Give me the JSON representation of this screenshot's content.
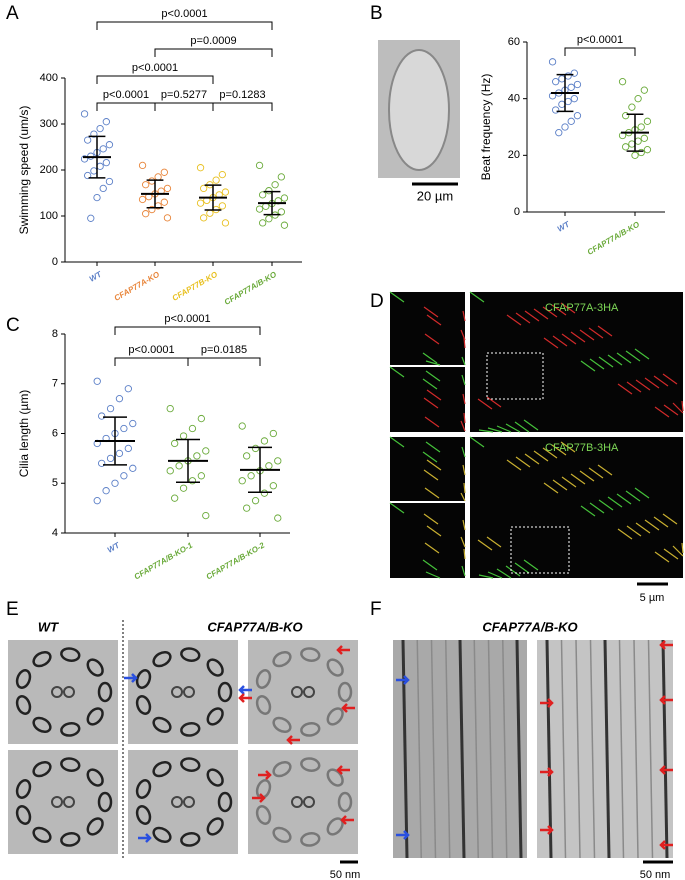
{
  "chart_data": [
    {
      "type": "dot",
      "ylabel": "Swimming speed (um/s)",
      "categories": [
        "WT",
        "CFAP77A-KO",
        "CFAP77B-KO",
        "CFAP77A/B-KO"
      ],
      "colors": [
        "#5b7fc7",
        "#e8853a",
        "#e8c020",
        "#6aaa3a"
      ],
      "ylim": [
        0,
        400
      ],
      "yticks": [
        0,
        100,
        200,
        300,
        400
      ],
      "means": [
        228,
        148,
        140,
        128
      ],
      "sds": [
        45,
        30,
        27,
        25
      ],
      "points": [
        [
          322,
          305,
          290,
          278,
          265,
          255,
          246,
          238,
          230,
          224,
          216,
          208,
          198,
          188,
          175,
          160,
          140,
          95
        ],
        [
          210,
          195,
          185,
          176,
          168,
          160,
          154,
          148,
          142,
          136,
          130,
          122,
          114,
          105,
          96
        ],
        [
          205,
          190,
          178,
          168,
          160,
          152,
          146,
          140,
          134,
          128,
          122,
          114,
          106,
          96,
          85
        ],
        [
          210,
          185,
          168,
          155,
          146,
          139,
          133,
          127,
          121,
          115,
          109,
          102,
          94,
          85,
          80
        ]
      ],
      "comparisons": [
        {
          "label": "p<0.0001",
          "from": "WT",
          "to": "CFAP77A-KO"
        },
        {
          "label": "p=0.5277",
          "from": "CFAP77A-KO",
          "to": "CFAP77B-KO"
        },
        {
          "label": "p=0.1283",
          "from": "CFAP77B-KO",
          "to": "CFAP77A/B-KO"
        },
        {
          "label": "p<0.0001",
          "from": "WT",
          "to": "CFAP77B-KO"
        },
        {
          "label": "p=0.0009",
          "from": "CFAP77A-KO",
          "to": "CFAP77A/B-KO"
        },
        {
          "label": "p<0.0001",
          "from": "WT",
          "to": "CFAP77A/B-KO"
        }
      ]
    },
    {
      "type": "dot",
      "ylabel": "Beat frequency (Hz)",
      "categories": [
        "WT",
        "CFAP77A/B-KO"
      ],
      "colors": [
        "#5b7fc7",
        "#6aaa3a"
      ],
      "ylim": [
        0,
        60
      ],
      "yticks": [
        0,
        20,
        40,
        60
      ],
      "means": [
        42,
        28
      ],
      "sds": [
        6.5,
        6.5
      ],
      "points": [
        [
          53,
          49,
          48,
          47,
          46,
          45,
          44,
          43,
          42,
          41,
          40,
          39,
          38,
          36,
          34,
          32,
          30,
          28
        ],
        [
          46,
          43,
          40,
          37,
          34,
          32,
          30,
          29,
          28,
          27,
          26,
          25,
          24,
          23,
          22,
          21,
          20
        ]
      ],
      "comparisons": [
        {
          "label": "p<0.0001",
          "from": "WT",
          "to": "CFAP77A/B-KO"
        }
      ]
    },
    {
      "type": "dot",
      "ylabel": "Cilia length (µm)",
      "categories": [
        "WT",
        "CFAP77A/B-KO-1",
        "CFAP77A/B-KO-2"
      ],
      "colors": [
        "#5b7fc7",
        "#6aaa3a",
        "#6aaa3a"
      ],
      "ylim": [
        4,
        8
      ],
      "yticks": [
        4,
        5,
        6,
        7,
        8
      ],
      "means": [
        5.85,
        5.45,
        5.27
      ],
      "sds": [
        0.48,
        0.43,
        0.45
      ],
      "points": [
        [
          7.05,
          6.9,
          6.7,
          6.5,
          6.35,
          6.2,
          6.1,
          6.0,
          5.9,
          5.8,
          5.7,
          5.6,
          5.5,
          5.4,
          5.3,
          5.15,
          5.0,
          4.85,
          4.65
        ],
        [
          6.5,
          6.3,
          6.1,
          5.95,
          5.8,
          5.65,
          5.55,
          5.45,
          5.35,
          5.25,
          5.15,
          5.05,
          4.9,
          4.7,
          4.35
        ],
        [
          6.15,
          6.0,
          5.85,
          5.7,
          5.55,
          5.45,
          5.35,
          5.25,
          5.15,
          5.05,
          4.95,
          4.8,
          4.65,
          4.5,
          4.3
        ]
      ],
      "comparisons": [
        {
          "label": "p<0.0001",
          "from": "WT",
          "to": "CFAP77A/B-KO-1"
        },
        {
          "label": "p=0.0185",
          "from": "CFAP77A/B-KO-1",
          "to": "CFAP77A/B-KO-2"
        },
        {
          "label": "p<0.0001",
          "from": "WT",
          "to": "CFAP77A/B-KO-2"
        }
      ]
    }
  ],
  "figure": {
    "panel_labels": [
      "A",
      "B",
      "C",
      "D",
      "E",
      "F"
    ],
    "b_scale": "20 µm",
    "d_labels": [
      "CFAP77A-3HA",
      "CFAP77B-3HA"
    ],
    "d_scale": "5 µm",
    "e_headers": [
      "WT",
      "CFAP77A/B-KO"
    ],
    "e_scale": "50 nm",
    "f_header": "CFAP77A/B-KO",
    "f_scale": "50 nm"
  }
}
